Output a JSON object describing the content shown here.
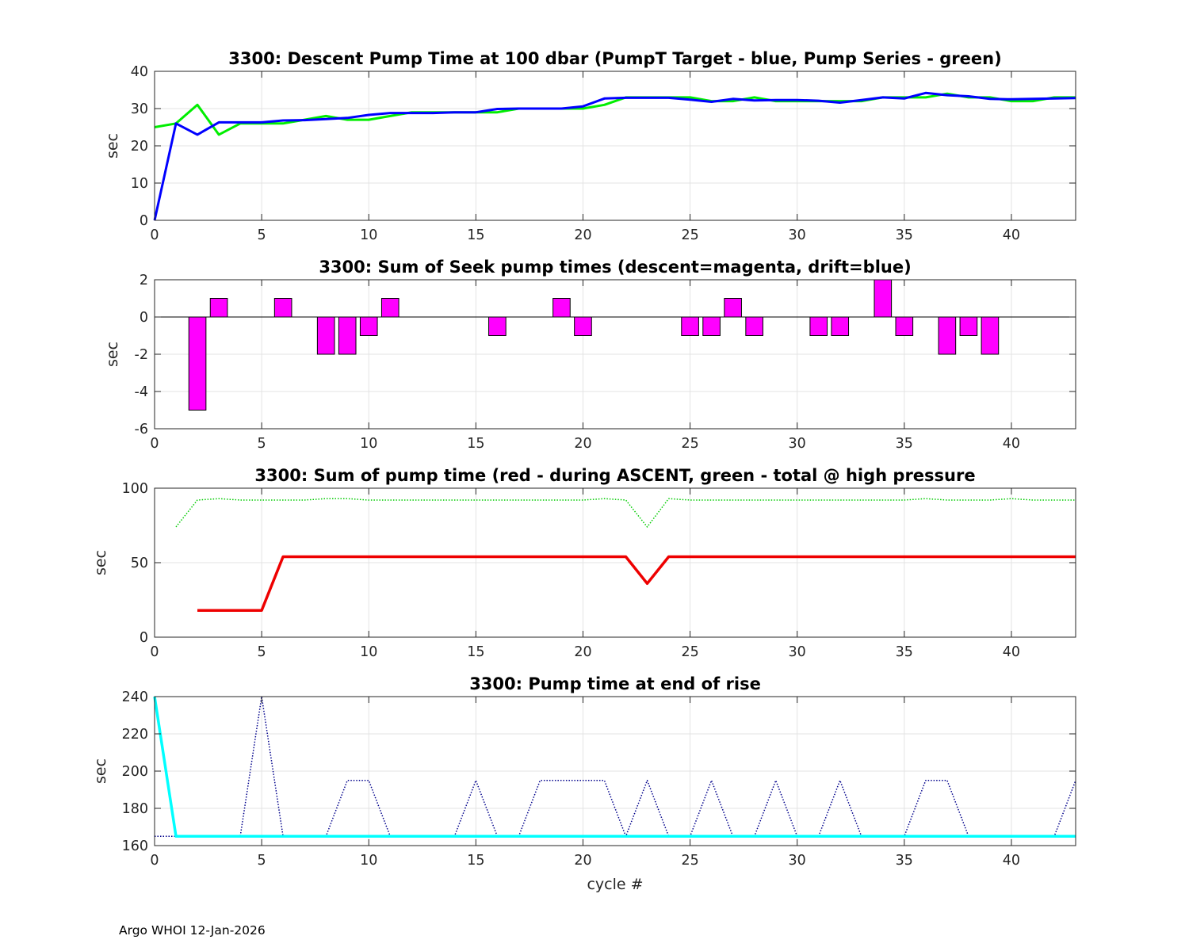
{
  "footer": "Argo WHOI 12-Jan-2026",
  "chart_data": [
    {
      "type": "line",
      "title": "3300: Descent Pump Time at 100 dbar (PumpT Target - blue, Pump Series - green)",
      "xlabel": "",
      "ylabel": "sec",
      "xlim": [
        0,
        43
      ],
      "ylim": [
        0,
        40
      ],
      "xticks": [
        0,
        5,
        10,
        15,
        20,
        25,
        30,
        35,
        40
      ],
      "yticks": [
        0,
        10,
        20,
        30,
        40
      ],
      "grid": true,
      "x": [
        0,
        1,
        2,
        3,
        4,
        5,
        6,
        7,
        8,
        9,
        10,
        11,
        12,
        13,
        14,
        15,
        16,
        17,
        18,
        19,
        20,
        21,
        22,
        23,
        24,
        25,
        26,
        27,
        28,
        29,
        30,
        31,
        32,
        33,
        34,
        35,
        36,
        37,
        38,
        39,
        40,
        41,
        42,
        43
      ],
      "series": [
        {
          "color": "#00ee00",
          "style": "solid",
          "width": 3,
          "values": [
            25,
            26,
            31,
            23,
            26,
            26,
            26,
            27,
            28,
            27,
            27,
            28,
            29,
            29,
            29,
            29,
            29,
            30,
            30,
            30,
            30,
            31,
            33,
            33,
            33,
            33,
            32,
            32,
            33,
            32,
            32,
            32,
            32,
            32,
            33,
            33,
            33,
            34,
            33,
            33,
            32,
            32,
            33,
            33
          ]
        },
        {
          "color": "#0000ff",
          "style": "solid",
          "width": 3,
          "values": [
            0,
            26,
            23,
            26.3,
            26.3,
            26.3,
            26.8,
            26.9,
            27.2,
            27.5,
            28.3,
            28.8,
            28.8,
            28.8,
            29,
            29,
            29.9,
            30,
            30,
            30,
            30.6,
            32.7,
            32.9,
            32.9,
            32.9,
            32.4,
            31.8,
            32.6,
            32.2,
            32.3,
            32.3,
            32.1,
            31.6,
            32.3,
            33,
            32.7,
            34.2,
            33.6,
            33.3,
            32.6,
            32.5,
            32.6,
            32.7,
            32.8
          ]
        }
      ]
    },
    {
      "type": "bar",
      "title": "3300: Sum of Seek pump times (descent=magenta, drift=blue)",
      "xlabel": "",
      "ylabel": "sec",
      "xlim": [
        0,
        43
      ],
      "ylim": [
        -6,
        2
      ],
      "xticks": [
        0,
        5,
        10,
        15,
        20,
        25,
        30,
        35,
        40
      ],
      "yticks": [
        -6,
        -4,
        -2,
        0,
        2
      ],
      "grid": true,
      "color": "#ff00ff",
      "categories": [
        2,
        3,
        6,
        8,
        9,
        10,
        11,
        16,
        19,
        20,
        25,
        26,
        27,
        28,
        31,
        32,
        34,
        35,
        37,
        38,
        39
      ],
      "values": [
        -5,
        1,
        1,
        -2,
        -2,
        -1,
        1,
        -1,
        1,
        -1,
        -1,
        -1,
        1,
        -1,
        -1,
        -1,
        2,
        -1,
        -2,
        -1,
        -2
      ]
    },
    {
      "type": "line",
      "title": "3300: Sum of pump time (red - during ASCENT, green - total @ high pressure",
      "xlabel": "",
      "ylabel": "sec",
      "xlim": [
        0,
        43
      ],
      "ylim": [
        0,
        100
      ],
      "xticks": [
        0,
        5,
        10,
        15,
        20,
        25,
        30,
        35,
        40
      ],
      "yticks": [
        0,
        50,
        100
      ],
      "grid": true,
      "series": [
        {
          "color": "#00cc00",
          "style": "dotted",
          "width": 1.5,
          "x": [
            1,
            2,
            3,
            4,
            5,
            6,
            7,
            8,
            9,
            10,
            11,
            12,
            13,
            14,
            15,
            16,
            17,
            18,
            19,
            20,
            21,
            22,
            23,
            24,
            25,
            26,
            27,
            28,
            29,
            30,
            31,
            32,
            33,
            34,
            35,
            36,
            37,
            38,
            39,
            40,
            41,
            42,
            43
          ],
          "values": [
            74,
            92,
            93,
            92,
            92,
            92,
            92,
            93,
            93,
            92,
            92,
            92,
            92,
            92,
            92,
            92,
            92,
            92,
            92,
            92,
            93,
            92,
            74,
            93,
            92,
            92,
            92,
            92,
            92,
            92,
            92,
            92,
            92,
            92,
            92,
            93,
            92,
            92,
            92,
            93,
            92,
            92,
            92
          ]
        },
        {
          "color": "#ee0000",
          "style": "solid",
          "width": 3.5,
          "x": [
            2,
            3,
            4,
            5,
            6,
            7,
            8,
            9,
            10,
            11,
            12,
            13,
            14,
            15,
            16,
            17,
            18,
            19,
            20,
            21,
            22,
            23,
            24,
            25,
            26,
            27,
            28,
            29,
            30,
            31,
            32,
            33,
            34,
            35,
            36,
            37,
            38,
            39,
            40,
            41,
            42,
            43
          ],
          "values": [
            18,
            18,
            18,
            18,
            54,
            54,
            54,
            54,
            54,
            54,
            54,
            54,
            54,
            54,
            54,
            54,
            54,
            54,
            54,
            54,
            54,
            36,
            54,
            54,
            54,
            54,
            54,
            54,
            54,
            54,
            54,
            54,
            54,
            54,
            54,
            54,
            54,
            54,
            54,
            54,
            54,
            54
          ]
        }
      ]
    },
    {
      "type": "line",
      "title": "3300: Pump time at end of rise",
      "xlabel": "cycle #",
      "ylabel": "sec",
      "xlim": [
        0,
        43
      ],
      "ylim": [
        160,
        240
      ],
      "xticks": [
        0,
        5,
        10,
        15,
        20,
        25,
        30,
        35,
        40
      ],
      "yticks": [
        160,
        180,
        200,
        220,
        240
      ],
      "grid": true,
      "x": [
        0,
        1,
        2,
        3,
        4,
        5,
        6,
        7,
        8,
        9,
        10,
        11,
        12,
        13,
        14,
        15,
        16,
        17,
        18,
        19,
        20,
        21,
        22,
        23,
        24,
        25,
        26,
        27,
        28,
        29,
        30,
        31,
        32,
        33,
        34,
        35,
        36,
        37,
        38,
        39,
        40,
        41,
        42,
        43
      ],
      "series": [
        {
          "color": "#00008b",
          "style": "dotted",
          "width": 1.5,
          "values": [
            165,
            165,
            165,
            165,
            165,
            240,
            165,
            165,
            165,
            195,
            195,
            165,
            165,
            165,
            165,
            195,
            165,
            165,
            195,
            195,
            195,
            195,
            165,
            195,
            165,
            165,
            195,
            165,
            165,
            195,
            165,
            165,
            195,
            165,
            165,
            165,
            195,
            195,
            165,
            165,
            165,
            165,
            165,
            195
          ]
        },
        {
          "color": "#00ffff",
          "style": "solid",
          "width": 3.5,
          "values": [
            240,
            165,
            165,
            165,
            165,
            165,
            165,
            165,
            165,
            165,
            165,
            165,
            165,
            165,
            165,
            165,
            165,
            165,
            165,
            165,
            165,
            165,
            165,
            165,
            165,
            165,
            165,
            165,
            165,
            165,
            165,
            165,
            165,
            165,
            165,
            165,
            165,
            165,
            165,
            165,
            165,
            165,
            165,
            165
          ]
        }
      ]
    }
  ]
}
